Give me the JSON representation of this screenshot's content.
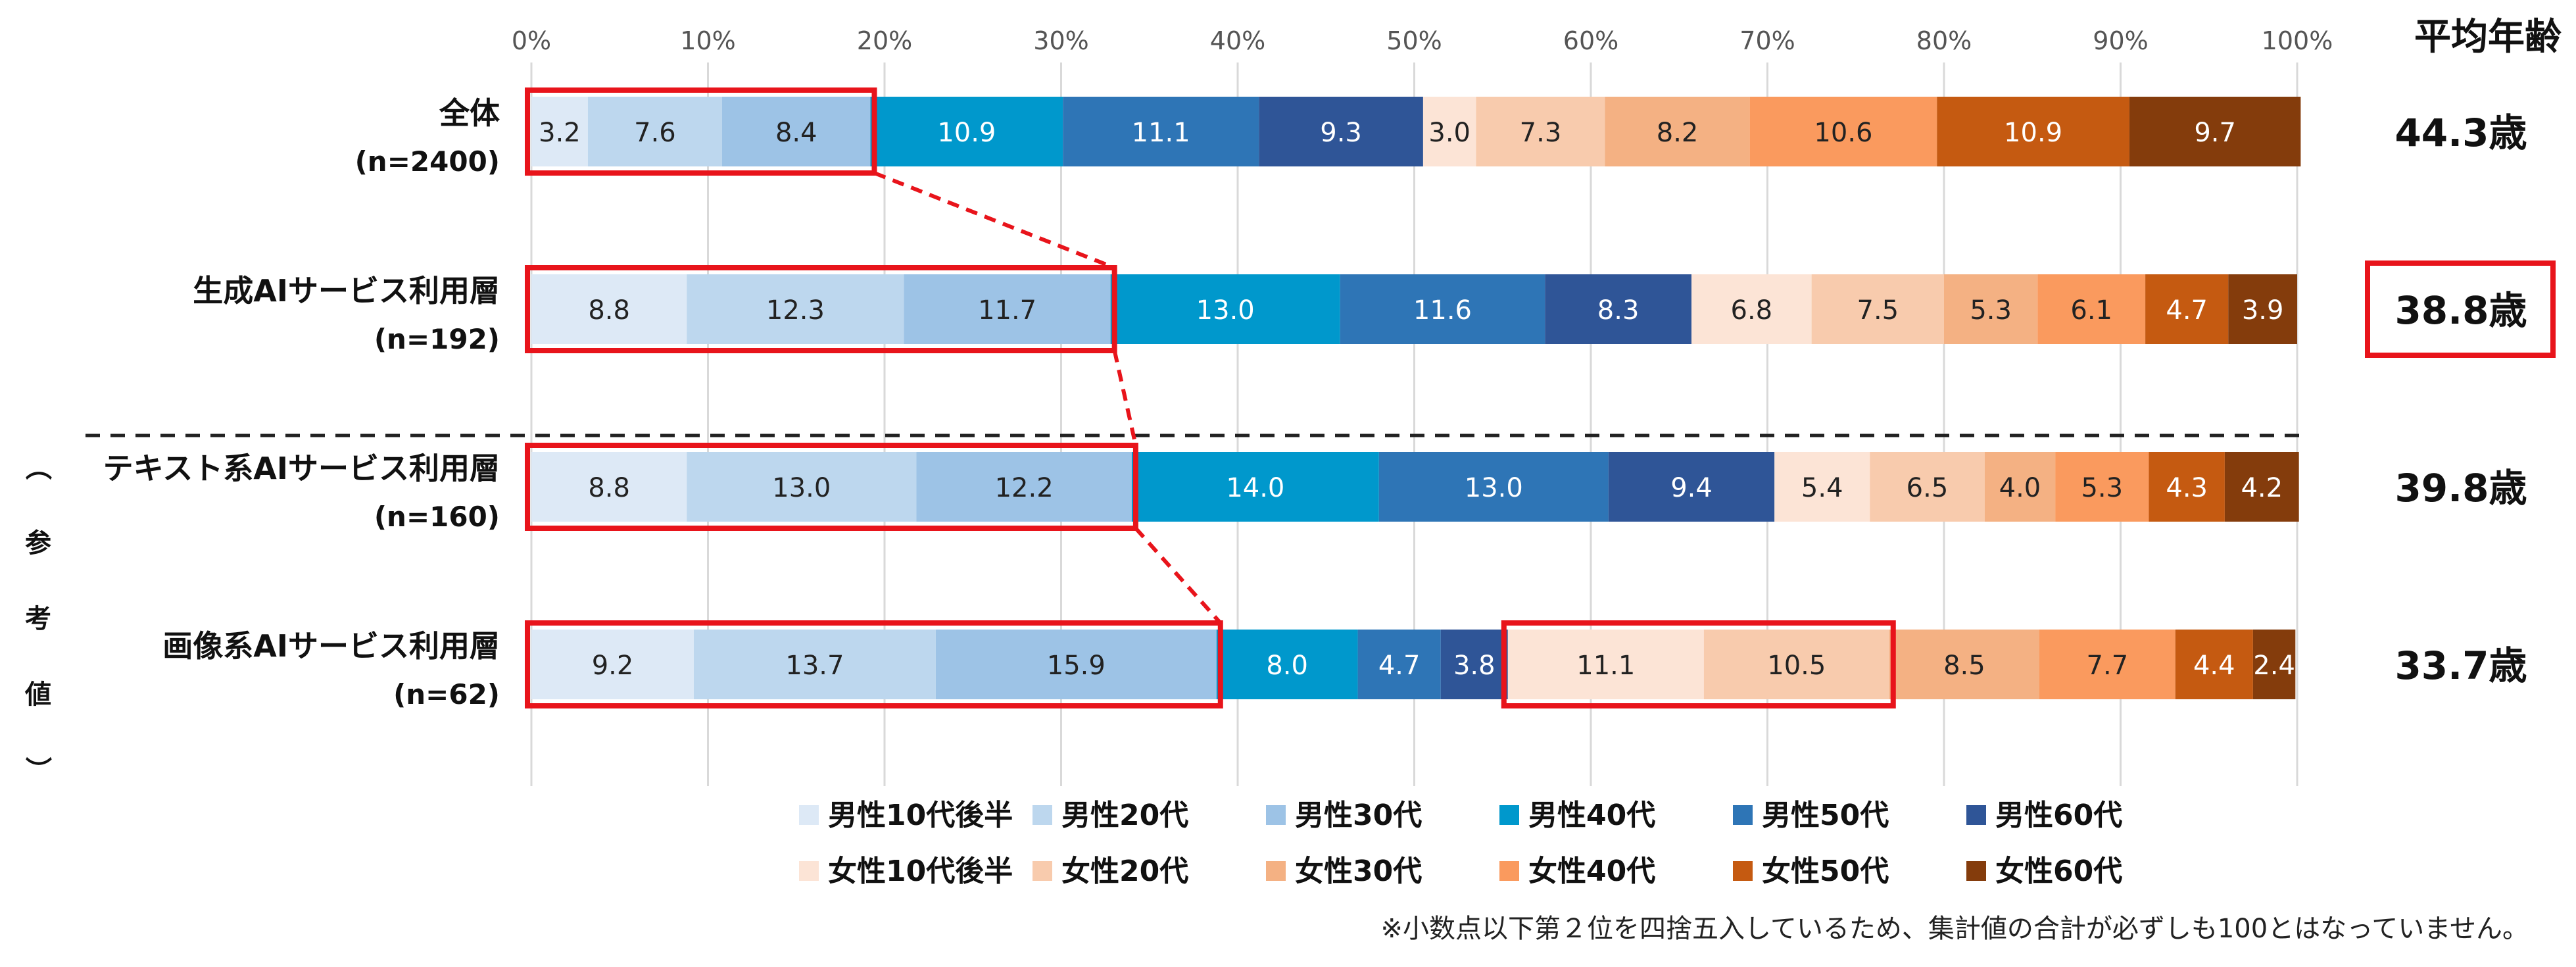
{
  "chart_data": {
    "type": "bar",
    "orientation": "horizontal",
    "stacked": true,
    "x_ticks": [
      "0%",
      "10%",
      "20%",
      "30%",
      "40%",
      "50%",
      "60%",
      "70%",
      "80%",
      "90%",
      "100%"
    ],
    "xlim": [
      0,
      100
    ],
    "grid": true,
    "avg_age_header": "平均年齢",
    "reference_label": "（参考値）",
    "categories": [
      {
        "label": "全体",
        "n": "(n=2400)",
        "avg_age": "44.3歳",
        "avg_highlighted": false
      },
      {
        "label": "生成AIサービス利用層",
        "n": "(n=192)",
        "avg_age": "38.8歳",
        "avg_highlighted": true
      },
      {
        "label": "テキスト系AIサービス利用層",
        "n": "(n=160)",
        "avg_age": "39.8歳",
        "avg_highlighted": false
      },
      {
        "label": "画像系AIサービス利用層",
        "n": "(n=62)",
        "avg_age": "33.7歳",
        "avg_highlighted": false
      }
    ],
    "series": [
      {
        "name": "男性10代後半",
        "color": "#dde9f6",
        "label_color": "#222222",
        "values": [
          3.2,
          8.8,
          8.8,
          9.2
        ]
      },
      {
        "name": "男性20代",
        "color": "#bdd7ee",
        "label_color": "#222222",
        "values": [
          7.6,
          12.3,
          13.0,
          13.7
        ]
      },
      {
        "name": "男性30代",
        "color": "#9dc3e6",
        "label_color": "#222222",
        "values": [
          8.4,
          11.7,
          12.2,
          15.9
        ]
      },
      {
        "name": "男性40代",
        "color": "#0098cc",
        "label_color": "#ffffff",
        "values": [
          10.9,
          13.0,
          14.0,
          8.0
        ]
      },
      {
        "name": "男性50代",
        "color": "#2e75b6",
        "label_color": "#ffffff",
        "values": [
          11.1,
          11.6,
          13.0,
          4.7
        ]
      },
      {
        "name": "男性60代",
        "color": "#2f5597",
        "label_color": "#ffffff",
        "values": [
          9.3,
          8.3,
          9.4,
          3.8
        ]
      },
      {
        "name": "女性10代後半",
        "color": "#fce4d6",
        "label_color": "#222222",
        "values": [
          3.0,
          6.8,
          5.4,
          11.1
        ]
      },
      {
        "name": "女性20代",
        "color": "#f8cbad",
        "label_color": "#222222",
        "values": [
          7.3,
          7.5,
          6.5,
          10.5
        ]
      },
      {
        "name": "女性30代",
        "color": "#f4b183",
        "label_color": "#222222",
        "values": [
          8.2,
          5.3,
          4.0,
          8.5
        ]
      },
      {
        "name": "女性40代",
        "color": "#fa9a5e",
        "label_color": "#222222",
        "values": [
          10.6,
          6.1,
          5.3,
          7.7
        ]
      },
      {
        "name": "女性50代",
        "color": "#c55a11",
        "label_color": "#ffffff",
        "values": [
          10.9,
          4.7,
          4.3,
          4.4
        ]
      },
      {
        "name": "女性60代",
        "color": "#843c0c",
        "label_color": "#ffffff",
        "values": [
          9.7,
          3.9,
          4.2,
          2.4
        ]
      }
    ],
    "legend_placement": "bottom",
    "highlight_color": "#e8141b",
    "highlights": [
      {
        "row": 0,
        "from_series": 0,
        "to_series": 2
      },
      {
        "row": 1,
        "from_series": 0,
        "to_series": 2
      },
      {
        "row": 2,
        "from_series": 0,
        "to_series": 2
      },
      {
        "row": 3,
        "from_series": 0,
        "to_series": 2
      },
      {
        "row": 3,
        "from_series": 6,
        "to_series": 7
      }
    ],
    "footnote": "※小数点以下第２位を四捨五入しているため、集計値の合計が必ずしも100とはなっていません。"
  }
}
